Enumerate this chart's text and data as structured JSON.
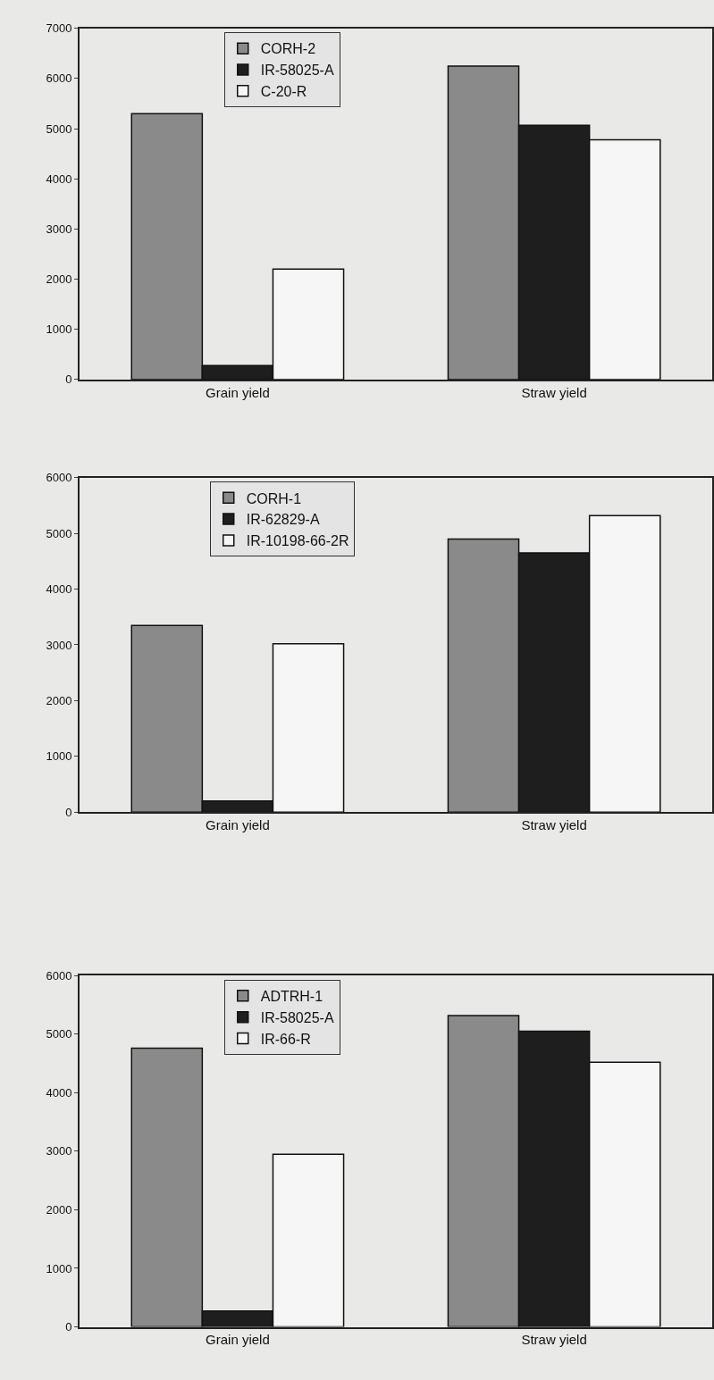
{
  "chart_data": [
    {
      "type": "bar",
      "categories": [
        "Grain yield",
        "Straw yield"
      ],
      "ylim": [
        0,
        7000
      ],
      "yticks": [
        0,
        1000,
        2000,
        3000,
        4000,
        5000,
        6000,
        7000
      ],
      "legend": "top",
      "series": [
        {
          "name": "CORH-2",
          "color": "#8a8a8a",
          "values": [
            5300,
            6250
          ]
        },
        {
          "name": "IR-58025-A",
          "color": "#1e1e1e",
          "values": [
            280,
            5070
          ]
        },
        {
          "name": "C-20-R",
          "color": "#f6f6f6",
          "values": [
            2200,
            4780
          ]
        }
      ]
    },
    {
      "type": "bar",
      "categories": [
        "Grain yield",
        "Straw yield"
      ],
      "ylim": [
        0,
        6000
      ],
      "yticks": [
        0,
        1000,
        2000,
        3000,
        4000,
        5000,
        6000
      ],
      "legend": "top",
      "series": [
        {
          "name": "CORH-1",
          "color": "#8a8a8a",
          "values": [
            3350,
            4900
          ]
        },
        {
          "name": "IR-62829-A",
          "color": "#1e1e1e",
          "values": [
            200,
            4650
          ]
        },
        {
          "name": "IR-10198-66-2R",
          "color": "#f6f6f6",
          "values": [
            3020,
            5320
          ]
        }
      ]
    },
    {
      "type": "bar",
      "categories": [
        "Grain yield",
        "Straw yield"
      ],
      "ylim": [
        0,
        6000
      ],
      "yticks": [
        0,
        1000,
        2000,
        3000,
        4000,
        5000,
        6000
      ],
      "legend": "top",
      "series": [
        {
          "name": "ADTRH-1",
          "color": "#8a8a8a",
          "values": [
            4760,
            5320
          ]
        },
        {
          "name": "IR-58025-A",
          "color": "#1e1e1e",
          "values": [
            270,
            5050
          ]
        },
        {
          "name": "IR-66-R",
          "color": "#f6f6f6",
          "values": [
            2950,
            4520
          ]
        }
      ]
    }
  ]
}
